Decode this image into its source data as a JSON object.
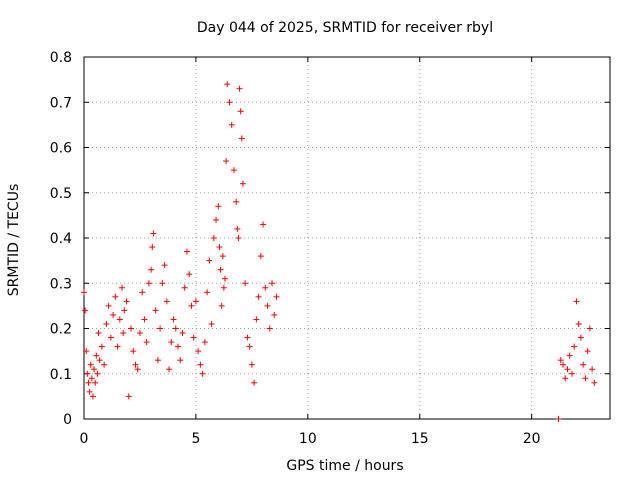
{
  "chart_data": {
    "type": "scatter",
    "title": "Day 044 of 2025, SRMTID for receiver rbyl",
    "xlabel": "GPS time / hours",
    "ylabel": "SRMTID / TECUs",
    "xlim": [
      0,
      23.5
    ],
    "ylim": [
      0,
      0.8
    ],
    "x_ticks": [
      0,
      5,
      10,
      15,
      20
    ],
    "y_ticks": [
      0,
      0.1,
      0.2,
      0.3,
      0.4,
      0.5,
      0.6,
      0.7,
      0.8
    ],
    "x_tick_labels": [
      "0",
      "5",
      "10",
      "15",
      "20"
    ],
    "y_tick_labels": [
      "0",
      "0.1",
      "0.2",
      "0.3",
      "0.4",
      "0.5",
      "0.6",
      "0.7",
      "0.8"
    ],
    "grid": true,
    "marker": "+",
    "color": "#ff0000",
    "series": [
      {
        "name": "SRMTID",
        "x": [
          0.0,
          0.05,
          0.1,
          0.15,
          0.2,
          0.25,
          0.3,
          0.35,
          0.4,
          0.45,
          0.5,
          0.55,
          0.6,
          0.65,
          0.7,
          0.8,
          0.9,
          1.0,
          1.1,
          1.2,
          1.3,
          1.4,
          1.5,
          1.6,
          1.7,
          1.75,
          1.8,
          1.9,
          2.0,
          2.1,
          2.2,
          2.3,
          2.4,
          2.5,
          2.6,
          2.7,
          2.8,
          2.9,
          3.0,
          3.05,
          3.1,
          3.2,
          3.3,
          3.4,
          3.5,
          3.6,
          3.7,
          3.8,
          3.9,
          4.0,
          4.1,
          4.2,
          4.3,
          4.4,
          4.5,
          4.6,
          4.7,
          4.8,
          4.9,
          5.0,
          5.1,
          5.2,
          5.3,
          5.4,
          5.5,
          5.6,
          5.7,
          5.8,
          5.9,
          6.0,
          6.05,
          6.1,
          6.15,
          6.2,
          6.25,
          6.3,
          6.35,
          6.4,
          6.5,
          6.6,
          6.7,
          6.8,
          6.85,
          6.9,
          6.95,
          7.0,
          7.05,
          7.1,
          7.2,
          7.3,
          7.4,
          7.5,
          7.6,
          7.7,
          7.8,
          7.9,
          8.0,
          8.1,
          8.2,
          8.3,
          8.4,
          8.5,
          8.6,
          21.2,
          21.3,
          21.4,
          21.5,
          21.6,
          21.7,
          21.8,
          21.9,
          22.0,
          22.1,
          22.2,
          22.3,
          22.4,
          22.5,
          22.6,
          22.7,
          22.8
        ],
        "y": [
          0.28,
          0.24,
          0.15,
          0.1,
          0.08,
          0.06,
          0.12,
          0.09,
          0.05,
          0.11,
          0.08,
          0.14,
          0.1,
          0.19,
          0.13,
          0.16,
          0.12,
          0.21,
          0.25,
          0.18,
          0.23,
          0.27,
          0.16,
          0.22,
          0.29,
          0.19,
          0.24,
          0.26,
          0.05,
          0.2,
          0.15,
          0.12,
          0.11,
          0.19,
          0.28,
          0.22,
          0.17,
          0.3,
          0.33,
          0.38,
          0.41,
          0.24,
          0.13,
          0.2,
          0.3,
          0.34,
          0.26,
          0.11,
          0.17,
          0.22,
          0.2,
          0.16,
          0.13,
          0.19,
          0.29,
          0.37,
          0.32,
          0.25,
          0.18,
          0.26,
          0.15,
          0.12,
          0.1,
          0.17,
          0.28,
          0.35,
          0.21,
          0.4,
          0.44,
          0.47,
          0.38,
          0.33,
          0.25,
          0.36,
          0.29,
          0.31,
          0.57,
          0.74,
          0.7,
          0.65,
          0.55,
          0.48,
          0.42,
          0.4,
          0.73,
          0.68,
          0.62,
          0.52,
          0.3,
          0.18,
          0.16,
          0.12,
          0.08,
          0.22,
          0.27,
          0.36,
          0.43,
          0.29,
          0.25,
          0.2,
          0.3,
          0.23,
          0.27,
          0.0,
          0.13,
          0.12,
          0.09,
          0.11,
          0.14,
          0.1,
          0.16,
          0.26,
          0.21,
          0.18,
          0.12,
          0.09,
          0.15,
          0.2,
          0.11,
          0.08
        ]
      }
    ]
  }
}
